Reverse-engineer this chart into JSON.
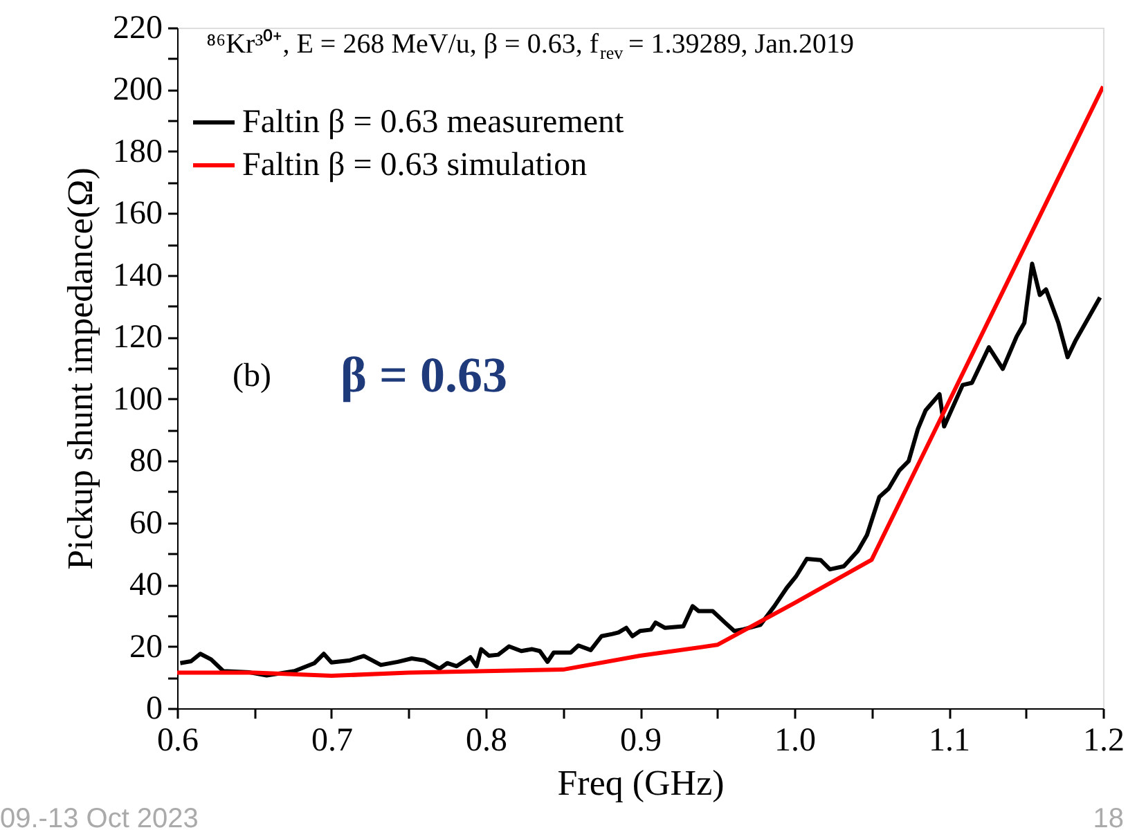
{
  "chart_data": {
    "type": "line",
    "xlabel": "Freq (GHz)",
    "ylabel": "Pickup shunt impedance(Ω)",
    "xlim": [
      0.6,
      1.2
    ],
    "xticks": [
      0.6,
      {
        "value": 0.65,
        "label": null
      },
      0.7,
      {
        "value": 0.75,
        "label": null
      },
      0.8,
      {
        "value": 0.85,
        "label": null
      },
      0.9,
      {
        "value": 0.95,
        "label": null
      },
      {
        "value": 1.0,
        "label": "1.0"
      },
      {
        "value": 1.05,
        "label": null
      },
      1.1,
      {
        "value": 1.15,
        "label": null
      },
      1.2
    ],
    "ylim": [
      0,
      220
    ],
    "yticks": [
      0,
      {
        "value": 10,
        "label": null
      },
      20,
      {
        "value": 30,
        "label": null
      },
      40,
      {
        "value": 50,
        "label": null
      },
      60,
      {
        "value": 70,
        "label": null
      },
      80,
      {
        "value": 90,
        "label": null
      },
      100,
      {
        "value": 110,
        "label": null
      },
      120,
      {
        "value": 130,
        "label": null
      },
      140,
      {
        "value": 150,
        "label": null
      },
      160,
      {
        "value": 170,
        "label": null
      },
      180,
      {
        "value": 190,
        "label": null
      },
      200,
      {
        "value": 210,
        "label": null
      },
      220
    ],
    "grid": false,
    "legend": "top left",
    "marker": "none",
    "line_style": "solid",
    "annotations": [
      "⁸⁶Kr³⁰⁺, E = 268 MeV/u, β = 0.63, f$_{rev}$ = 1.39289, Jan.2019",
      "(b)",
      "β = 0.63",
      "09.-13 Oct 2023",
      "18"
    ],
    "series": [
      {
        "name": "Faltin β  = 0.63 measurement",
        "color": "#000000",
        "x": [
          0.602,
          0.609,
          0.615,
          0.622,
          0.63,
          0.647,
          0.658,
          0.676,
          0.689,
          0.695,
          0.7,
          0.712,
          0.721,
          0.732,
          0.743,
          0.752,
          0.76,
          0.77,
          0.775,
          0.781,
          0.79,
          0.794,
          0.797,
          0.802,
          0.808,
          0.815,
          0.823,
          0.83,
          0.835,
          0.84,
          0.844,
          0.855,
          0.86,
          0.868,
          0.875,
          0.882,
          0.886,
          0.891,
          0.895,
          0.9,
          0.907,
          0.91,
          0.916,
          0.928,
          0.934,
          0.938,
          0.947,
          0.955,
          0.961,
          0.967,
          0.978,
          0.987,
          0.995,
          1.001,
          1.008,
          1.017,
          1.023,
          1.032,
          1.041,
          1.047,
          1.055,
          1.061,
          1.068,
          1.074,
          1.08,
          1.085,
          1.094,
          1.097,
          1.109,
          1.115,
          1.126,
          1.135,
          1.144,
          1.149,
          1.154,
          1.159,
          1.163,
          1.171,
          1.177,
          1.182,
          1.198
        ],
        "values": [
          14.6,
          15.2,
          17.6,
          15.8,
          12,
          11.6,
          10.6,
          12,
          14.6,
          17.6,
          14.8,
          15.5,
          16.9,
          14,
          15,
          16.1,
          15.5,
          12.8,
          14.6,
          13.6,
          16.5,
          13.6,
          19.1,
          17,
          17.3,
          20,
          18.5,
          19.1,
          18.5,
          15,
          18,
          18,
          20.3,
          18.8,
          23.3,
          24,
          24.5,
          26,
          23.3,
          25,
          25.4,
          27.7,
          26,
          26.5,
          33,
          31.4,
          31.4,
          27.7,
          25,
          25.5,
          27,
          33,
          38.9,
          42.6,
          48.3,
          47.9,
          44.9,
          45.9,
          50.8,
          56,
          68.3,
          71,
          76.9,
          79.9,
          90.3,
          96.3,
          101.5,
          91.1,
          104.5,
          105.2,
          116.7,
          109.7,
          120.2,
          124.6,
          143.7,
          133.6,
          135.4,
          124.6,
          113.5,
          118.7,
          132.8
        ]
      },
      {
        "name": "Faltin β  = 0.63 simulation",
        "color": "#ff0000",
        "x": [
          0.6,
          0.65,
          0.7,
          0.75,
          0.8,
          0.85,
          0.9,
          0.95,
          1.0,
          1.05,
          1.1,
          1.15,
          1.2
        ],
        "values": [
          11.5,
          11.5,
          10.5,
          11.5,
          12,
          12.5,
          17,
          20.5,
          34,
          48,
          99,
          150,
          201
        ]
      }
    ]
  }
}
